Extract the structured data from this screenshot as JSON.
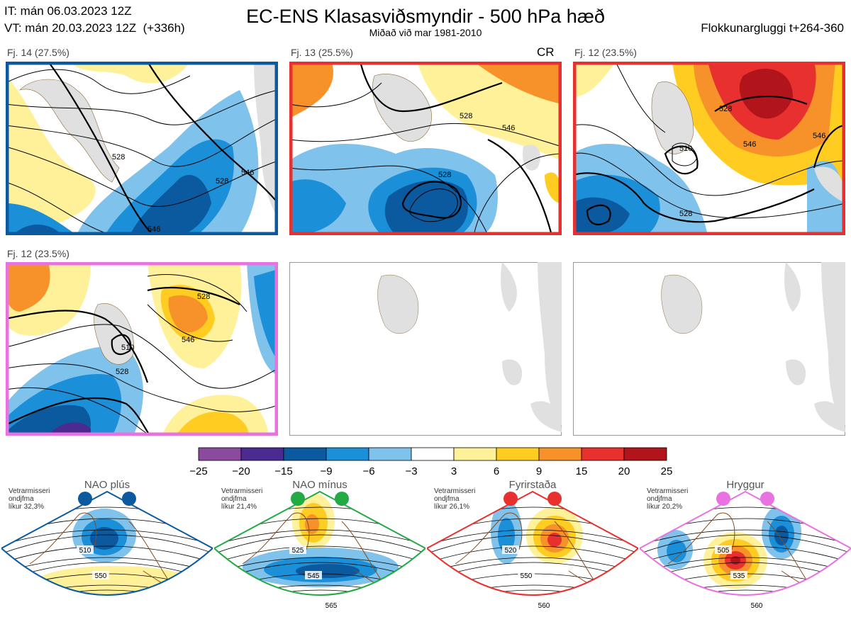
{
  "header": {
    "it": "IT: mán 06.03.2023 12Z",
    "vt": "VT: mán 20.03.2023 12Z  (+336h)",
    "title": "EC-ENS Klasasviðsmyndir - 500 hPa hæð",
    "subtitle": "Miðað við mar 1981-2010",
    "window": "Flokkunargluggi t+264-360"
  },
  "panels": [
    {
      "label": "Fj. 14 (27.5%)",
      "border": "#0b5aa0",
      "extra": "",
      "contours": [
        "528",
        "528",
        "546",
        "546"
      ]
    },
    {
      "label": "Fj. 13 (25.5%)",
      "border": "#e8302e",
      "extra": "CR",
      "contours": [
        "528",
        "528",
        "546"
      ]
    },
    {
      "label": "Fj. 12 (23.5%)",
      "border": "#e8302e",
      "extra": "",
      "contours": [
        "528",
        "510",
        "546",
        "528",
        "546"
      ]
    },
    {
      "label": "Fj. 12 (23.5%)",
      "border": "#e872e0",
      "extra": "",
      "contours": [
        "528",
        "546",
        "528",
        "510"
      ]
    },
    {
      "label": "",
      "border": "#999999",
      "extra": "",
      "contours": []
    },
    {
      "label": "",
      "border": "#999999",
      "extra": "",
      "contours": []
    }
  ],
  "colorbar": {
    "ticks": [
      "−25",
      "−20",
      "−15",
      "−9",
      "−6",
      "−3",
      "3",
      "6",
      "9",
      "15",
      "20",
      "25"
    ],
    "colors": [
      "#8c4a9e",
      "#4b2b90",
      "#0b5aa0",
      "#1c8fd9",
      "#7fc2ec",
      "#ffffff",
      "#fff19a",
      "#ffcc22",
      "#f7922a",
      "#e8302e",
      "#b2141c"
    ]
  },
  "regimes": [
    {
      "name": "NAO plús",
      "line1": "Vetrarmisseri",
      "line2": "ondjfma",
      "line3": "líkur 32,3%",
      "color": "#0b5aa0",
      "labels": [
        "510",
        "550"
      ]
    },
    {
      "name": "NAO mínus",
      "line1": "Vetrarmisseri",
      "line2": "ondjfma",
      "line3": "líkur 21,4%",
      "color": "#22aa44",
      "labels": [
        "525",
        "545",
        "565"
      ]
    },
    {
      "name": "Fyrirstaða",
      "line1": "Vetrarmisseri",
      "line2": "ondjfma",
      "line3": "líkur 26,1%",
      "color": "#e8302e",
      "labels": [
        "520",
        "550",
        "560"
      ]
    },
    {
      "name": "Hryggur",
      "line1": "Vetrarmisseri",
      "line2": "ondjfma",
      "line3": "líkur 20,2%",
      "color": "#e872e0",
      "labels": [
        "505",
        "535",
        "560"
      ]
    }
  ]
}
